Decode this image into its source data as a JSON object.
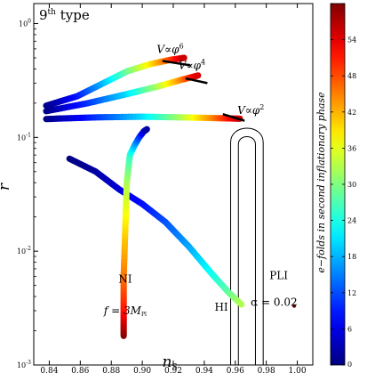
{
  "chart_data": {
    "type": "scatter",
    "title": "9th type",
    "title_base": "9",
    "title_sup": "th",
    "title_word": "type",
    "xlabel_main": "n",
    "xlabel_sub": "S",
    "ylabel": "r",
    "xlim": [
      0.83,
      1.01
    ],
    "ylim": [
      0.001,
      1.5
    ],
    "y_scale": "log",
    "x_ticks": [
      0.84,
      0.86,
      0.88,
      0.9,
      0.92,
      0.94,
      0.96,
      0.98,
      1.0
    ],
    "x_tick_labels": [
      "0.84",
      "0.86",
      "0.88",
      "0.90",
      "0.92",
      "0.94",
      "0.96",
      "0.98",
      "1.00"
    ],
    "y_ticks": [
      0.001,
      0.01,
      0.1,
      1
    ],
    "y_tick_labels": [
      {
        "base": "10",
        "exp": "-3"
      },
      {
        "base": "10",
        "exp": "-2"
      },
      {
        "base": "10",
        "exp": "-1"
      },
      {
        "base": "10",
        "exp": "0"
      }
    ],
    "colorbar": {
      "label": "e−folds in second inflationary phase",
      "range": [
        0,
        60
      ],
      "ticks": [
        0,
        6,
        12,
        18,
        24,
        30,
        36,
        42,
        48,
        54,
        60
      ],
      "tick_labels": [
        "0",
        "6",
        "12",
        "18",
        "24",
        "30",
        "36",
        "42",
        "48",
        "54",
        ""
      ],
      "colormap": "jet"
    },
    "annotations": [
      {
        "id": "phi6",
        "prefix": "V∝",
        "base": "φ",
        "exp": "6",
        "x": 0.918,
        "y": 0.55
      },
      {
        "id": "phi4",
        "prefix": "V∝",
        "base": "φ",
        "exp": "4",
        "x": 0.932,
        "y": 0.4
      },
      {
        "id": "phi2",
        "prefix": "V∝",
        "base": "φ",
        "exp": "2",
        "x": 0.97,
        "y": 0.16
      },
      {
        "id": "ni",
        "text": "NI",
        "x": 0.889,
        "y": 0.0053
      },
      {
        "id": "ni_f",
        "text": "f = 3M",
        "sub": "Pl",
        "x": 0.889,
        "y": 0.0028
      },
      {
        "id": "hi",
        "text": "HI",
        "x": 0.951,
        "y": 0.003
      },
      {
        "id": "pli",
        "text": "PLI",
        "x": 0.988,
        "y": 0.0057
      },
      {
        "id": "pli_alpha",
        "text": "α = 0.02",
        "x": 0.985,
        "y": 0.0033
      }
    ],
    "series": [
      {
        "id": "ni-branch",
        "points": [
          [
            0.853,
            0.065,
            0
          ],
          [
            0.87,
            0.05,
            2
          ],
          [
            0.885,
            0.035,
            5
          ],
          [
            0.9,
            0.026,
            8
          ],
          [
            0.915,
            0.018,
            12
          ],
          [
            0.93,
            0.011,
            17
          ],
          [
            0.945,
            0.0063,
            23
          ],
          [
            0.956,
            0.0043,
            28
          ],
          [
            0.964,
            0.0034,
            33
          ]
        ]
      },
      {
        "id": "hi-branch",
        "points": [
          [
            0.888,
            0.0018,
            60
          ],
          [
            0.888,
            0.003,
            52
          ],
          [
            0.888,
            0.006,
            46
          ],
          [
            0.889,
            0.015,
            40
          ],
          [
            0.89,
            0.04,
            33
          ],
          [
            0.892,
            0.07,
            26
          ],
          [
            0.895,
            0.085,
            19
          ],
          [
            0.898,
            0.1,
            12
          ],
          [
            0.901,
            0.113,
            6
          ],
          [
            0.903,
            0.118,
            2
          ]
        ]
      },
      {
        "id": "phi6-branch",
        "points": [
          [
            0.838,
            0.19,
            0
          ],
          [
            0.858,
            0.23,
            8
          ],
          [
            0.875,
            0.3,
            18
          ],
          [
            0.89,
            0.38,
            28
          ],
          [
            0.905,
            0.44,
            38
          ],
          [
            0.918,
            0.48,
            48
          ],
          [
            0.927,
            0.5,
            56
          ]
        ]
      },
      {
        "id": "phi4-branch",
        "points": [
          [
            0.838,
            0.17,
            0
          ],
          [
            0.865,
            0.2,
            10
          ],
          [
            0.89,
            0.24,
            20
          ],
          [
            0.91,
            0.28,
            32
          ],
          [
            0.925,
            0.32,
            44
          ],
          [
            0.936,
            0.35,
            55
          ]
        ]
      },
      {
        "id": "phi2-branch",
        "points": [
          [
            0.838,
            0.145,
            0
          ],
          [
            0.87,
            0.15,
            10
          ],
          [
            0.9,
            0.152,
            20
          ],
          [
            0.925,
            0.15,
            32
          ],
          [
            0.945,
            0.148,
            44
          ],
          [
            0.963,
            0.146,
            56
          ]
        ]
      }
    ],
    "marks": [
      {
        "id": "phi6-end",
        "x1": 0.913,
        "y1": 0.47,
        "x2": 0.931,
        "y2": 0.43
      },
      {
        "id": "phi4-end",
        "x1": 0.928,
        "y1": 0.33,
        "x2": 0.942,
        "y2": 0.3
      },
      {
        "id": "phi2-end",
        "x1": 0.952,
        "y1": 0.16,
        "x2": 0.966,
        "y2": 0.14
      },
      {
        "id": "pli-point",
        "x": 0.998,
        "y": 0.0033
      }
    ],
    "contours": [
      {
        "id": "contour-outer",
        "x_left": 0.957,
        "x_right": 0.978,
        "y_top": 0.13,
        "y_bottom": 0.001
      },
      {
        "id": "contour-inner",
        "x_left": 0.962,
        "x_right": 0.973,
        "y_top": 0.105,
        "y_bottom": 0.001
      }
    ]
  }
}
